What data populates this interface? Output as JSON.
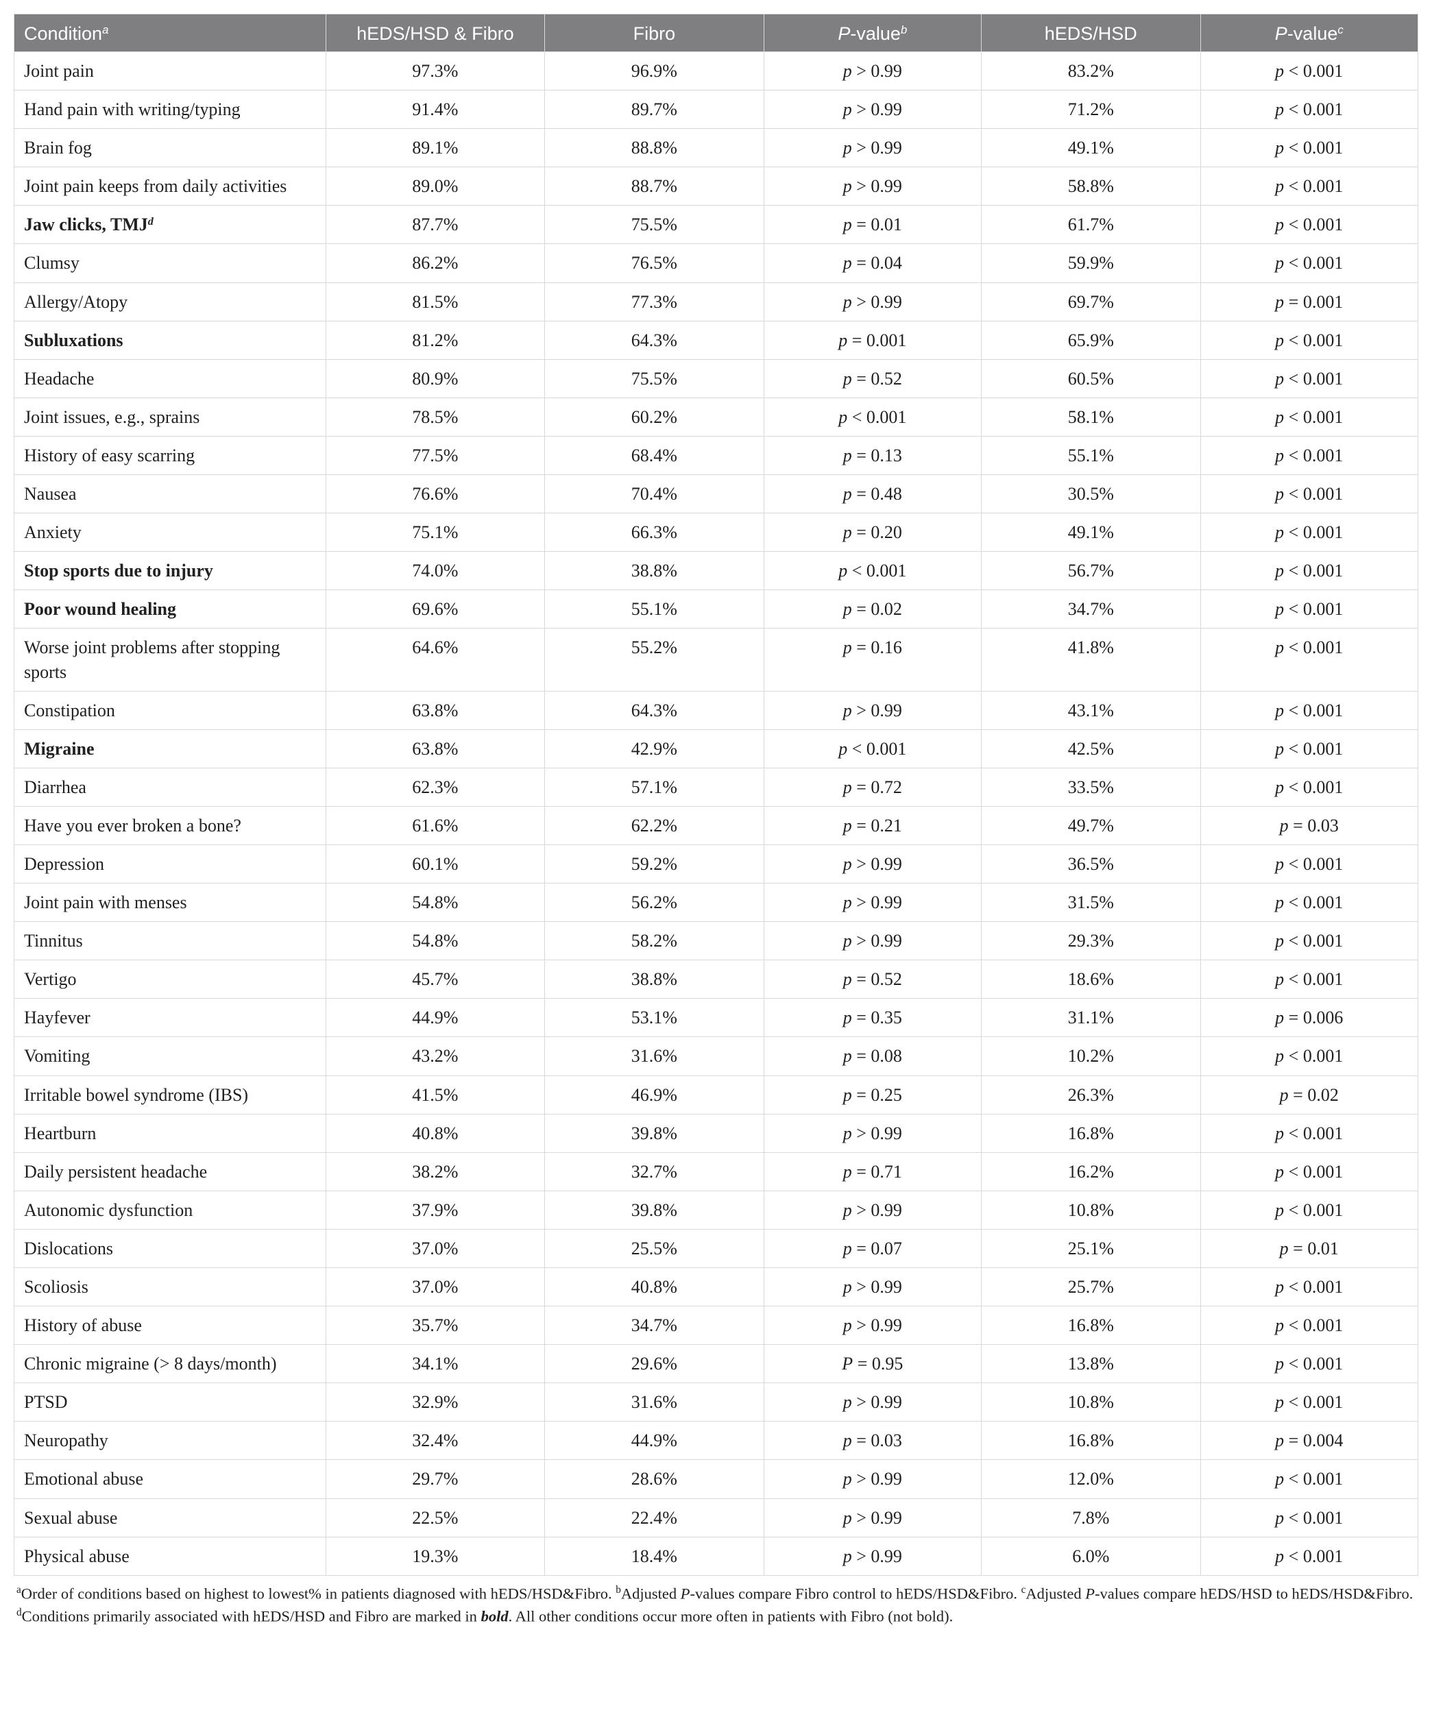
{
  "table": {
    "type": "table",
    "background_color": "#ffffff",
    "header_bg": "#7f7f82",
    "header_fg": "#ffffff",
    "border_color": "#d9d9db",
    "body_font": "Times/Serif",
    "header_font": "Helvetica/Sans",
    "header_fontsize_pt": 20,
    "body_fontsize_pt": 19,
    "footnote_fontsize_pt": 16,
    "columns": [
      {
        "key": "condition",
        "label_html": "Condition<span class='sup'>a</span>",
        "align": "left",
        "width_pct": 22.2
      },
      {
        "key": "both",
        "label_html": "hEDS/HSD &amp; Fibro",
        "align": "center",
        "width_pct": 15.6
      },
      {
        "key": "fibro",
        "label_html": "Fibro",
        "align": "center",
        "width_pct": 15.6
      },
      {
        "key": "pvb",
        "label_html": "<span class='p-ital'>P</span>-value<span class='sup'>b</span>",
        "align": "center",
        "width_pct": 15.5
      },
      {
        "key": "heds",
        "label_html": "hEDS/HSD",
        "align": "center",
        "width_pct": 15.6
      },
      {
        "key": "pvc",
        "label_html": "<span class='p-ital'>P</span>-value<span class='sup'>c</span>",
        "align": "center",
        "width_pct": 15.5
      }
    ],
    "rows": [
      {
        "condition": "Joint pain",
        "bold": false,
        "both": "97.3%",
        "fibro": "96.9%",
        "pvb": "<span class='p-ital'>p</span> &gt; 0.99",
        "heds": "83.2%",
        "pvc": "<span class='p-ital'>p</span> &lt; 0.001"
      },
      {
        "condition": "Hand pain with writing/typing",
        "bold": false,
        "both": "91.4%",
        "fibro": "89.7%",
        "pvb": "<span class='p-ital'>p</span> &gt; 0.99",
        "heds": "71.2%",
        "pvc": "<span class='p-ital'>p</span> &lt; 0.001"
      },
      {
        "condition": "Brain fog",
        "bold": false,
        "both": "89.1%",
        "fibro": "88.8%",
        "pvb": "<span class='p-ital'>p</span> &gt; 0.99",
        "heds": "49.1%",
        "pvc": "<span class='p-ital'>p</span> &lt; 0.001"
      },
      {
        "condition": "Joint pain keeps from daily activities",
        "bold": false,
        "both": "89.0%",
        "fibro": "88.7%",
        "pvb": "<span class='p-ital'>p</span> &gt; 0.99",
        "heds": "58.8%",
        "pvc": "<span class='p-ital'>p</span> &lt; 0.001"
      },
      {
        "condition": "Jaw clicks, TMJ<span class='sup'>d</span>",
        "bold": true,
        "both": "87.7%",
        "fibro": "75.5%",
        "pvb": "<span class='p-ital'>p</span> = 0.01",
        "heds": "61.7%",
        "pvc": "<span class='p-ital'>p</span> &lt; 0.001"
      },
      {
        "condition": "Clumsy",
        "bold": false,
        "both": "86.2%",
        "fibro": "76.5%",
        "pvb": "<span class='p-ital'>p</span> = 0.04",
        "heds": "59.9%",
        "pvc": "<span class='p-ital'>p</span> &lt; 0.001"
      },
      {
        "condition": "Allergy/Atopy",
        "bold": false,
        "both": "81.5%",
        "fibro": "77.3%",
        "pvb": "<span class='p-ital'>p</span> &gt; 0.99",
        "heds": "69.7%",
        "pvc": "<span class='p-ital'>p</span> = 0.001"
      },
      {
        "condition": "Subluxations",
        "bold": true,
        "both": "81.2%",
        "fibro": "64.3%",
        "pvb": "<span class='p-ital'>p</span> = 0.001",
        "heds": "65.9%",
        "pvc": "<span class='p-ital'>p</span> &lt; 0.001"
      },
      {
        "condition": "Headache",
        "bold": false,
        "both": "80.9%",
        "fibro": "75.5%",
        "pvb": "<span class='p-ital'>p</span> = 0.52",
        "heds": "60.5%",
        "pvc": "<span class='p-ital'>p</span> &lt; 0.001"
      },
      {
        "condition": "Joint issues, e.g., sprains",
        "bold": false,
        "both": "78.5%",
        "fibro": "60.2%",
        "pvb": "<span class='p-ital'>p</span> &lt; 0.001",
        "heds": "58.1%",
        "pvc": "<span class='p-ital'>p</span> &lt; 0.001"
      },
      {
        "condition": "History of easy scarring",
        "bold": false,
        "both": "77.5%",
        "fibro": "68.4%",
        "pvb": "<span class='p-ital'>p</span> = 0.13",
        "heds": "55.1%",
        "pvc": "<span class='p-ital'>p</span> &lt; 0.001"
      },
      {
        "condition": "Nausea",
        "bold": false,
        "both": "76.6%",
        "fibro": "70.4%",
        "pvb": "<span class='p-ital'>p</span> = 0.48",
        "heds": "30.5%",
        "pvc": "<span class='p-ital'>p</span> &lt; 0.001"
      },
      {
        "condition": "Anxiety",
        "bold": false,
        "both": "75.1%",
        "fibro": "66.3%",
        "pvb": "<span class='p-ital'>p</span> = 0.20",
        "heds": "49.1%",
        "pvc": "<span class='p-ital'>p</span> &lt; 0.001"
      },
      {
        "condition": "Stop sports due to injury",
        "bold": true,
        "both": "74.0%",
        "fibro": "38.8%",
        "pvb": "<span class='p-ital'>p</span> &lt; 0.001",
        "heds": "56.7%",
        "pvc": "<span class='p-ital'>p</span> &lt; 0.001"
      },
      {
        "condition": "Poor wound healing",
        "bold": true,
        "both": "69.6%",
        "fibro": "55.1%",
        "pvb": "<span class='p-ital'>p</span> = 0.02",
        "heds": "34.7%",
        "pvc": "<span class='p-ital'>p</span> &lt; 0.001"
      },
      {
        "condition": "Worse joint problems after stopping sports",
        "bold": false,
        "both": "64.6%",
        "fibro": "55.2%",
        "pvb": "<span class='p-ital'>p</span> = 0.16",
        "heds": "41.8%",
        "pvc": "<span class='p-ital'>p</span> &lt; 0.001"
      },
      {
        "condition": "Constipation",
        "bold": false,
        "both": "63.8%",
        "fibro": "64.3%",
        "pvb": "<span class='p-ital'>p</span> &gt; 0.99",
        "heds": "43.1%",
        "pvc": "<span class='p-ital'>p</span> &lt; 0.001"
      },
      {
        "condition": "Migraine",
        "bold": true,
        "both": "63.8%",
        "fibro": "42.9%",
        "pvb": "<span class='p-ital'>p</span> &lt; 0.001",
        "heds": "42.5%",
        "pvc": "<span class='p-ital'>p</span> &lt; 0.001"
      },
      {
        "condition": "Diarrhea",
        "bold": false,
        "both": "62.3%",
        "fibro": "57.1%",
        "pvb": "<span class='p-ital'>p</span> = 0.72",
        "heds": "33.5%",
        "pvc": "<span class='p-ital'>p</span> &lt; 0.001"
      },
      {
        "condition": "Have you ever broken a bone?",
        "bold": false,
        "both": "61.6%",
        "fibro": "62.2%",
        "pvb": "<span class='p-ital'>p</span> = 0.21",
        "heds": "49.7%",
        "pvc": "<span class='p-ital'>p</span> = 0.03"
      },
      {
        "condition": "Depression",
        "bold": false,
        "both": "60.1%",
        "fibro": "59.2%",
        "pvb": "<span class='p-ital'>p</span> &gt; 0.99",
        "heds": "36.5%",
        "pvc": "<span class='p-ital'>p</span> &lt; 0.001"
      },
      {
        "condition": "Joint pain with menses",
        "bold": false,
        "both": "54.8%",
        "fibro": "56.2%",
        "pvb": "<span class='p-ital'>p</span> &gt; 0.99",
        "heds": "31.5%",
        "pvc": "<span class='p-ital'>p</span> &lt; 0.001"
      },
      {
        "condition": "Tinnitus",
        "bold": false,
        "both": "54.8%",
        "fibro": "58.2%",
        "pvb": "<span class='p-ital'>p</span> &gt; 0.99",
        "heds": "29.3%",
        "pvc": "<span class='p-ital'>p</span> &lt; 0.001"
      },
      {
        "condition": "Vertigo",
        "bold": false,
        "both": "45.7%",
        "fibro": "38.8%",
        "pvb": "<span class='p-ital'>p</span> = 0.52",
        "heds": "18.6%",
        "pvc": "<span class='p-ital'>p</span> &lt; 0.001"
      },
      {
        "condition": "Hayfever",
        "bold": false,
        "both": "44.9%",
        "fibro": "53.1%",
        "pvb": "<span class='p-ital'>p</span> = 0.35",
        "heds": "31.1%",
        "pvc": "<span class='p-ital'>p</span> = 0.006"
      },
      {
        "condition": "Vomiting",
        "bold": false,
        "both": "43.2%",
        "fibro": "31.6%",
        "pvb": "<span class='p-ital'>p</span> = 0.08",
        "heds": "10.2%",
        "pvc": "<span class='p-ital'>p</span> &lt; 0.001"
      },
      {
        "condition": "Irritable bowel syndrome (IBS)",
        "bold": false,
        "both": "41.5%",
        "fibro": "46.9%",
        "pvb": "<span class='p-ital'>p</span> = 0.25",
        "heds": "26.3%",
        "pvc": "<span class='p-ital'>p</span> = 0.02"
      },
      {
        "condition": "Heartburn",
        "bold": false,
        "both": "40.8%",
        "fibro": "39.8%",
        "pvb": "<span class='p-ital'>p</span> &gt; 0.99",
        "heds": "16.8%",
        "pvc": "<span class='p-ital'>p</span> &lt; 0.001"
      },
      {
        "condition": "Daily persistent headache",
        "bold": false,
        "both": "38.2%",
        "fibro": "32.7%",
        "pvb": "<span class='p-ital'>p</span> = 0.71",
        "heds": "16.2%",
        "pvc": "<span class='p-ital'>p</span> &lt; 0.001"
      },
      {
        "condition": "Autonomic dysfunction",
        "bold": false,
        "both": "37.9%",
        "fibro": "39.8%",
        "pvb": "<span class='p-ital'>p</span> &gt; 0.99",
        "heds": "10.8%",
        "pvc": "<span class='p-ital'>p</span> &lt; 0.001"
      },
      {
        "condition": "Dislocations",
        "bold": false,
        "both": "37.0%",
        "fibro": "25.5%",
        "pvb": "<span class='p-ital'>p</span> = 0.07",
        "heds": "25.1%",
        "pvc": "<span class='p-ital'>p</span> = 0.01"
      },
      {
        "condition": "Scoliosis",
        "bold": false,
        "both": "37.0%",
        "fibro": "40.8%",
        "pvb": "<span class='p-ital'>p</span> &gt; 0.99",
        "heds": "25.7%",
        "pvc": "<span class='p-ital'>p</span> &lt; 0.001"
      },
      {
        "condition": "History of abuse",
        "bold": false,
        "both": "35.7%",
        "fibro": "34.7%",
        "pvb": "<span class='p-ital'>p</span> &gt; 0.99",
        "heds": "16.8%",
        "pvc": "<span class='p-ital'>p</span> &lt; 0.001"
      },
      {
        "condition": "Chronic migraine (&gt; 8 days/month)",
        "bold": false,
        "both": "34.1%",
        "fibro": "29.6%",
        "pvb": "<span class='p-ital'>P</span> = 0.95",
        "heds": "13.8%",
        "pvc": "<span class='p-ital'>p</span> &lt; 0.001"
      },
      {
        "condition": "PTSD",
        "bold": false,
        "both": "32.9%",
        "fibro": "31.6%",
        "pvb": "<span class='p-ital'>p</span> &gt; 0.99",
        "heds": "10.8%",
        "pvc": "<span class='p-ital'>p</span> &lt; 0.001"
      },
      {
        "condition": "Neuropathy",
        "bold": false,
        "both": "32.4%",
        "fibro": "44.9%",
        "pvb": "<span class='p-ital'>p</span> = 0.03",
        "heds": "16.8%",
        "pvc": "<span class='p-ital'>p</span> = 0.004"
      },
      {
        "condition": "Emotional abuse",
        "bold": false,
        "both": "29.7%",
        "fibro": "28.6%",
        "pvb": "<span class='p-ital'>p</span> &gt; 0.99",
        "heds": "12.0%",
        "pvc": "<span class='p-ital'>p</span> &lt; 0.001"
      },
      {
        "condition": "Sexual abuse",
        "bold": false,
        "both": "22.5%",
        "fibro": "22.4%",
        "pvb": "<span class='p-ital'>p</span> &gt; 0.99",
        "heds": "7.8%",
        "pvc": "<span class='p-ital'>p</span> &lt; 0.001"
      },
      {
        "condition": "Physical abuse",
        "bold": false,
        "both": "19.3%",
        "fibro": "18.4%",
        "pvb": "<span class='p-ital'>p</span> &gt; 0.99",
        "heds": "6.0%",
        "pvc": "<span class='p-ital'>p</span> &lt; 0.001"
      }
    ],
    "footnotes_html": "<span class='fsup'>a</span>Order of conditions based on highest to lowest% in patients diagnosed with hEDS/HSD&amp;Fibro. <span class='fsup'>b</span>Adjusted <span class='p-ital'>P</span>-values compare Fibro control to hEDS/HSD&amp;Fibro. <span class='fsup'>c</span>Adjusted <span class='p-ital'>P</span>-values compare hEDS/HSD to hEDS/HSD&amp;Fibro. <span class='fsup'>d</span>Conditions primarily associated with hEDS/HSD and Fibro are marked in <span class='p-ital bold'>bold</span>. All other conditions occur more often in patients with Fibro (not bold)."
  }
}
